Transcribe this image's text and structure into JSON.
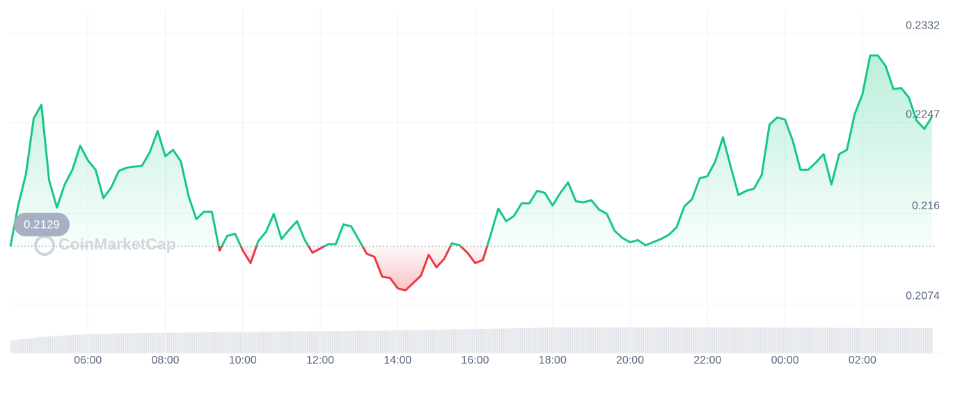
{
  "chart_data": {
    "type": "line",
    "watermark": "CoinMarketCap",
    "color": "#16c784",
    "down_color": "#ea3943",
    "baseline": 0.2129,
    "grid": true,
    "xlim": [
      4,
      27.8
    ],
    "xticks": [
      {
        "value": 6,
        "label": "06:00"
      },
      {
        "value": 8,
        "label": "08:00"
      },
      {
        "value": 10,
        "label": "10:00"
      },
      {
        "value": 12,
        "label": "12:00"
      },
      {
        "value": 14,
        "label": "14:00"
      },
      {
        "value": 16,
        "label": "16:00"
      },
      {
        "value": 18,
        "label": "18:00"
      },
      {
        "value": 20,
        "label": "20:00"
      },
      {
        "value": 22,
        "label": "22:00"
      },
      {
        "value": 24,
        "label": "00:00"
      },
      {
        "value": 26,
        "label": "02:00"
      }
    ],
    "ylim": [
      0.2059,
      0.2354
    ],
    "yticks": [
      0.2332,
      0.2247,
      0.216,
      0.2074
    ],
    "x": [
      4,
      4.2,
      4.4,
      4.6,
      4.8,
      5,
      5.2,
      5.4,
      5.6,
      5.8,
      6,
      6.2,
      6.4,
      6.6,
      6.8,
      7,
      7.2,
      7.4,
      7.6,
      7.8,
      8,
      8.2,
      8.4,
      8.6,
      8.8,
      9,
      9.2,
      9.4,
      9.6,
      9.8,
      10,
      10.2,
      10.4,
      10.6,
      10.8,
      11,
      11.2,
      11.4,
      11.6,
      11.8,
      12,
      12.2,
      12.4,
      12.6,
      12.8,
      13,
      13.2,
      13.4,
      13.6,
      13.8,
      14,
      14.2,
      14.4,
      14.6,
      14.8,
      15,
      15.2,
      15.4,
      15.6,
      15.8,
      16,
      16.2,
      16.4,
      16.6,
      16.8,
      17,
      17.2,
      17.4,
      17.6,
      17.8,
      18,
      18.2,
      18.4,
      18.6,
      18.8,
      19,
      19.2,
      19.4,
      19.6,
      19.8,
      20,
      20.2,
      20.4,
      20.6,
      20.8,
      21,
      21.2,
      21.4,
      21.6,
      21.8,
      22,
      22.2,
      22.4,
      22.6,
      22.8,
      23,
      23.2,
      23.4,
      23.6,
      23.8,
      24,
      24.2,
      24.4,
      24.6,
      24.8,
      25,
      25.2,
      25.4,
      25.6,
      25.8,
      26,
      26.2,
      26.4,
      26.6,
      26.8,
      27,
      27.2,
      27.4,
      27.6,
      27.8
    ],
    "values": [
      0.2129,
      0.2168,
      0.2198,
      0.2251,
      0.2264,
      0.2192,
      0.2166,
      0.2188,
      0.2202,
      0.2225,
      0.2211,
      0.2202,
      0.2175,
      0.2185,
      0.2201,
      0.2204,
      0.2205,
      0.2206,
      0.2219,
      0.2239,
      0.2215,
      0.2221,
      0.221,
      0.2177,
      0.2155,
      0.2162,
      0.2162,
      0.2125,
      0.2139,
      0.2141,
      0.2125,
      0.2113,
      0.2134,
      0.2143,
      0.216,
      0.2136,
      0.2145,
      0.2153,
      0.2135,
      0.2123,
      0.2127,
      0.2131,
      0.2131,
      0.215,
      0.2148,
      0.2135,
      0.2122,
      0.2119,
      0.21,
      0.2099,
      0.2089,
      0.2087,
      0.2094,
      0.2101,
      0.2121,
      0.2109,
      0.2117,
      0.2132,
      0.213,
      0.2123,
      0.2113,
      0.2116,
      0.214,
      0.2165,
      0.2153,
      0.2158,
      0.217,
      0.217,
      0.2182,
      0.218,
      0.2168,
      0.218,
      0.219,
      0.2172,
      0.2171,
      0.2173,
      0.2164,
      0.216,
      0.2144,
      0.2137,
      0.2133,
      0.2135,
      0.213,
      0.2133,
      0.2136,
      0.214,
      0.2147,
      0.2167,
      0.2174,
      0.2194,
      0.2196,
      0.221,
      0.2233,
      0.2205,
      0.2178,
      0.2182,
      0.2184,
      0.2197,
      0.2245,
      0.2252,
      0.225,
      0.223,
      0.2202,
      0.2202,
      0.2209,
      0.2217,
      0.2188,
      0.2217,
      0.2221,
      0.2255,
      0.2274,
      0.2311,
      0.2311,
      0.2301,
      0.2279,
      0.228,
      0.2271,
      0.2249,
      0.2241,
      0.2253
    ]
  }
}
